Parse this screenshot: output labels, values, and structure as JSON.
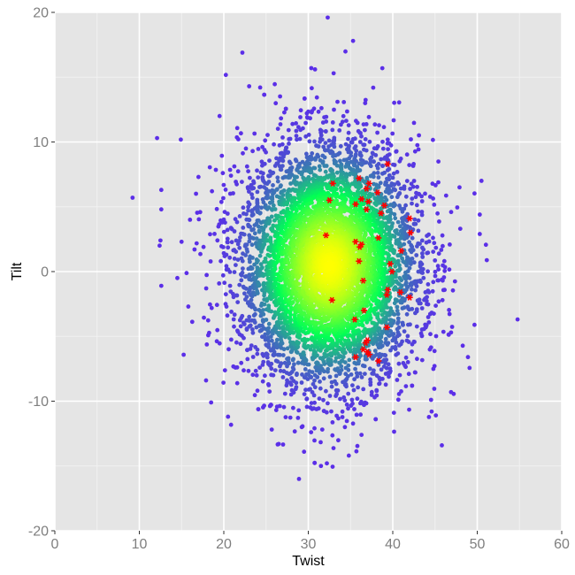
{
  "chart_data": {
    "type": "scatter",
    "title": "",
    "xlabel": "Twist",
    "ylabel": "Tilt",
    "xlim": [
      0,
      60
    ],
    "ylim": [
      -20,
      20
    ],
    "x_ticks": [
      0,
      10,
      20,
      30,
      40,
      50,
      60
    ],
    "y_ticks": [
      -20,
      -10,
      0,
      10,
      20
    ],
    "x_tick_labels": [
      "0",
      "10",
      "20",
      "30",
      "40",
      "50",
      "60"
    ],
    "y_tick_labels": [
      "-20",
      "-10",
      "0",
      "10",
      "20"
    ],
    "grid": true,
    "legend": "none",
    "colors": {
      "panel_background": "#e5e5e5",
      "grid_major": "#ffffff",
      "density_low": "#5b2ee8",
      "density_mid": "#00ff55",
      "density_high": "#ffff00",
      "highlight": "#ff0000"
    },
    "density_cloud": {
      "description_free_params": true,
      "center": [
        32.5,
        0.5
      ],
      "x_sd": 5.2,
      "y_sd": 4.6,
      "n_points": 6000
    },
    "outlier_points": [
      [
        9.2,
        5.7
      ],
      [
        12.1,
        10.3
      ],
      [
        12.6,
        6.3
      ],
      [
        12.6,
        4.8
      ],
      [
        12.5,
        2.4
      ],
      [
        12.4,
        2.0
      ],
      [
        12.6,
        -1.1
      ],
      [
        14.5,
        -0.5
      ],
      [
        15.0,
        2.3
      ],
      [
        15.8,
        -2.7
      ],
      [
        16.0,
        4.0
      ],
      [
        17.0,
        7.3
      ],
      [
        17.6,
        1.9
      ],
      [
        17.9,
        -8.4
      ],
      [
        18.5,
        -10.1
      ],
      [
        19.5,
        12.0
      ],
      [
        20.5,
        -11.2
      ],
      [
        23.0,
        14.3
      ],
      [
        32.3,
        19.6
      ],
      [
        35.3,
        17.8
      ],
      [
        30.8,
        15.6
      ],
      [
        33.0,
        15.3
      ],
      [
        26.5,
        -13.3
      ],
      [
        28.9,
        -16.0
      ],
      [
        31.5,
        -15.0
      ],
      [
        32.2,
        -14.8
      ],
      [
        36.3,
        -12.6
      ],
      [
        45.1,
        -11.1
      ],
      [
        44.6,
        -10.8
      ],
      [
        46.9,
        -9.3
      ],
      [
        48.9,
        -6.6
      ],
      [
        46.9,
        -4.7
      ],
      [
        50.3,
        4.4
      ],
      [
        50.3,
        2.9
      ],
      [
        47.9,
        6.5
      ],
      [
        50.5,
        7.0
      ],
      [
        34.8,
        -14.2
      ],
      [
        29.5,
        -13.9
      ],
      [
        20.9,
        -3.1
      ],
      [
        18.6,
        6.2
      ]
    ],
    "highlighted_points": [
      [
        39.4,
        8.3
      ],
      [
        36.0,
        7.2
      ],
      [
        32.9,
        6.8
      ],
      [
        37.2,
        6.8
      ],
      [
        36.9,
        6.4
      ],
      [
        38.2,
        6.1
      ],
      [
        36.3,
        5.6
      ],
      [
        37.1,
        5.4
      ],
      [
        32.5,
        5.5
      ],
      [
        35.6,
        5.2
      ],
      [
        39.0,
        5.1
      ],
      [
        36.9,
        4.8
      ],
      [
        38.6,
        4.5
      ],
      [
        42.0,
        4.1
      ],
      [
        42.1,
        3.0
      ],
      [
        32.1,
        2.8
      ],
      [
        35.6,
        2.3
      ],
      [
        36.3,
        2.1
      ],
      [
        38.3,
        2.6
      ],
      [
        36.1,
        1.9
      ],
      [
        41.0,
        1.6
      ],
      [
        36.0,
        0.8
      ],
      [
        39.7,
        0.6
      ],
      [
        39.9,
        0.0
      ],
      [
        36.5,
        -0.7
      ],
      [
        39.4,
        -1.4
      ],
      [
        39.3,
        -1.8
      ],
      [
        40.9,
        -1.6
      ],
      [
        42.0,
        -2.0
      ],
      [
        32.8,
        -2.2
      ],
      [
        36.6,
        -3.0
      ],
      [
        35.5,
        -3.7
      ],
      [
        39.3,
        -4.3
      ],
      [
        37.0,
        -5.3
      ],
      [
        36.8,
        -5.5
      ],
      [
        36.5,
        -6.0
      ],
      [
        37.0,
        -6.2
      ],
      [
        35.6,
        -6.6
      ],
      [
        37.2,
        -6.4
      ],
      [
        38.3,
        -6.9
      ]
    ]
  }
}
